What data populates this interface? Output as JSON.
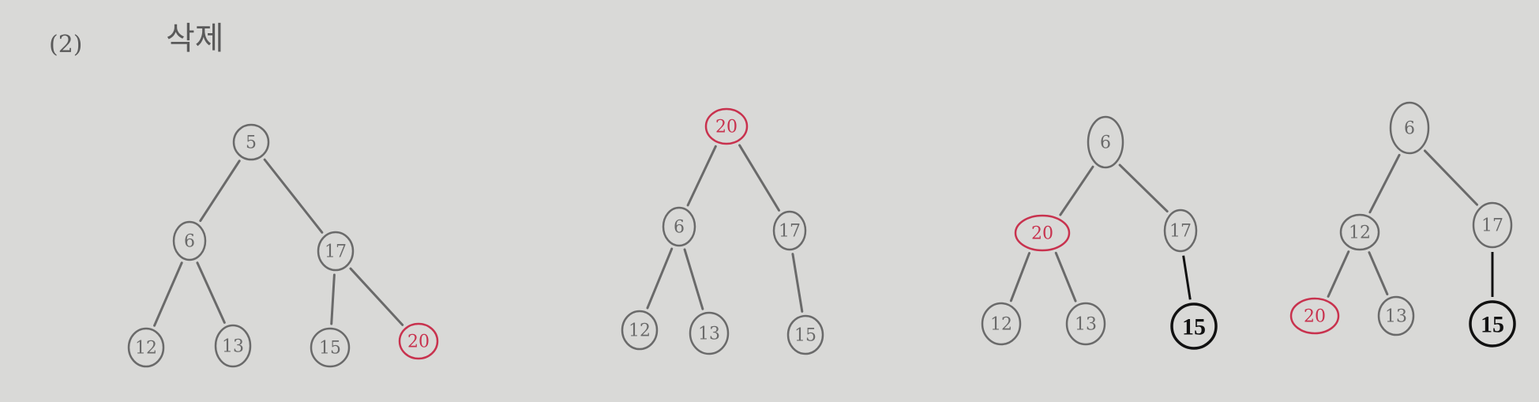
{
  "header": {
    "number": "(2)",
    "title": "삭제"
  },
  "colors": {
    "pencil": "#6a6a6a",
    "red": "#c8324e",
    "ink": "#111111"
  },
  "trees": [
    {
      "nodes": [
        {
          "id": "r",
          "label": "5",
          "color": "pencil"
        },
        {
          "id": "a",
          "label": "6",
          "color": "pencil"
        },
        {
          "id": "b",
          "label": "17",
          "color": "pencil"
        },
        {
          "id": "c",
          "label": "12",
          "color": "pencil"
        },
        {
          "id": "d",
          "label": "13",
          "color": "pencil"
        },
        {
          "id": "e",
          "label": "15",
          "color": "pencil"
        },
        {
          "id": "f",
          "label": "20",
          "color": "red"
        }
      ],
      "edges": [
        [
          "r",
          "a"
        ],
        [
          "r",
          "b"
        ],
        [
          "a",
          "c"
        ],
        [
          "a",
          "d"
        ],
        [
          "b",
          "e"
        ],
        [
          "b",
          "f"
        ]
      ]
    },
    {
      "nodes": [
        {
          "id": "r",
          "label": "20",
          "color": "red"
        },
        {
          "id": "a",
          "label": "6",
          "color": "pencil"
        },
        {
          "id": "b",
          "label": "17",
          "color": "pencil"
        },
        {
          "id": "c",
          "label": "12",
          "color": "pencil"
        },
        {
          "id": "d",
          "label": "13",
          "color": "pencil"
        },
        {
          "id": "e",
          "label": "15",
          "color": "pencil"
        }
      ],
      "edges": [
        [
          "r",
          "a"
        ],
        [
          "r",
          "b"
        ],
        [
          "a",
          "c"
        ],
        [
          "a",
          "d"
        ],
        [
          "b",
          "e"
        ]
      ]
    },
    {
      "nodes": [
        {
          "id": "r",
          "label": "6",
          "color": "pencil"
        },
        {
          "id": "a",
          "label": "20",
          "color": "red"
        },
        {
          "id": "b",
          "label": "17",
          "color": "pencil"
        },
        {
          "id": "c",
          "label": "12",
          "color": "pencil"
        },
        {
          "id": "d",
          "label": "13",
          "color": "pencil"
        },
        {
          "id": "e",
          "label": "15",
          "color": "ink"
        }
      ],
      "edges": [
        [
          "r",
          "a"
        ],
        [
          "r",
          "b"
        ],
        [
          "a",
          "c"
        ],
        [
          "a",
          "d"
        ],
        [
          "b",
          "e",
          "ink"
        ]
      ]
    },
    {
      "nodes": [
        {
          "id": "r",
          "label": "6",
          "color": "pencil"
        },
        {
          "id": "a",
          "label": "12",
          "color": "pencil"
        },
        {
          "id": "b",
          "label": "17",
          "color": "pencil"
        },
        {
          "id": "c",
          "label": "20",
          "color": "red"
        },
        {
          "id": "d",
          "label": "13",
          "color": "pencil"
        },
        {
          "id": "e",
          "label": "15",
          "color": "ink"
        }
      ],
      "edges": [
        [
          "r",
          "a"
        ],
        [
          "r",
          "b"
        ],
        [
          "a",
          "c"
        ],
        [
          "a",
          "d"
        ],
        [
          "b",
          "e",
          "ink"
        ]
      ]
    }
  ]
}
